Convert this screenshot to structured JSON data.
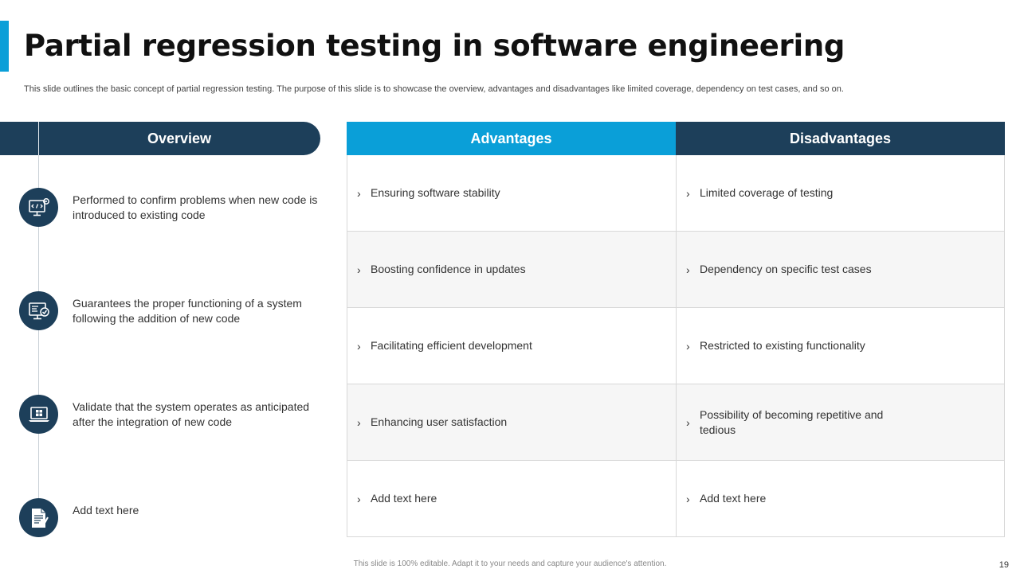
{
  "slide": {
    "title": "Partial regression testing in software engineering",
    "subtitle": "This slide outlines the basic concept of partial regression testing. The purpose of this slide is to showcase the overview, advantages and disadvantages like limited coverage, dependency on test cases, and so on.",
    "footer": "This slide is 100% editable. Adapt it to your needs and capture your audience's attention.",
    "page_number": "19"
  },
  "overview": {
    "header": "Overview",
    "items": [
      {
        "icon": "code-gear-icon",
        "text": "Performed to confirm problems when new code is introduced to existing code"
      },
      {
        "icon": "monitor-check-icon",
        "text": "Guarantees the proper functioning of a system following the addition of new code"
      },
      {
        "icon": "laptop-windows-icon",
        "text": "Validate that the system operates as anticipated after the integration of new code"
      },
      {
        "icon": "document-pen-icon",
        "text": "Add text here"
      }
    ]
  },
  "table": {
    "advantages_header": "Advantages",
    "disadvantages_header": "Disadvantages",
    "chevron": "›",
    "rows": [
      {
        "advantage": "Ensuring software stability",
        "disadvantage": "Limited coverage of testing"
      },
      {
        "advantage": "Boosting confidence in updates",
        "disadvantage": "Dependency on specific test cases"
      },
      {
        "advantage": "Facilitating efficient development",
        "disadvantage": "Restricted to existing functionality"
      },
      {
        "advantage": "Enhancing user satisfaction",
        "disadvantage": "Possibility of becoming repetitive and tedious"
      },
      {
        "advantage": "Add text here",
        "disadvantage": "Add text here"
      }
    ]
  },
  "colors": {
    "accent_blue": "#0a9fd8",
    "navy": "#1d3f5a"
  }
}
